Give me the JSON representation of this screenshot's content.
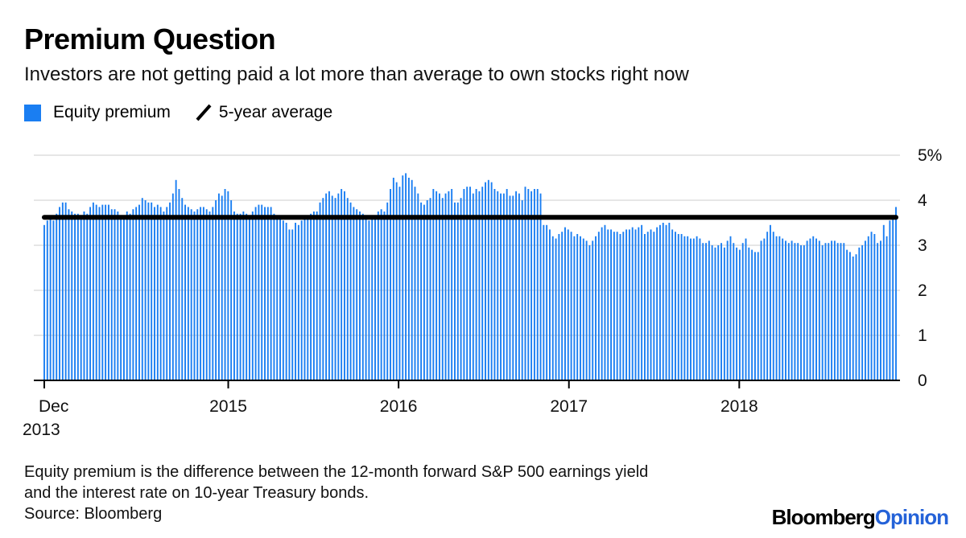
{
  "title": "Premium Question",
  "subtitle": "Investors are not getting paid a lot more than average to own stocks right now",
  "legend": {
    "equity_label": "Equity premium",
    "average_label": "5-year average"
  },
  "colors": {
    "bar": "#1a7ef2",
    "average_line": "#000000",
    "grid": "#e6e6e6",
    "axis": "#000000"
  },
  "footnote": {
    "line1": "Equity premium is the difference between the 12-month forward S&P 500 earnings yield",
    "line2": "and the interest rate on 10-year Treasury bonds."
  },
  "source": "Source: Bloomberg",
  "brand": {
    "part1": "Bloomberg",
    "part2": "Opinion"
  },
  "chart_data": {
    "type": "bar",
    "title": "Premium Question",
    "xlabel": "",
    "ylabel": "",
    "ylim": [
      0,
      5
    ],
    "y_ticks": [
      {
        "value": 0,
        "label": "0"
      },
      {
        "value": 1,
        "label": "1"
      },
      {
        "value": 2,
        "label": "2"
      },
      {
        "value": 3,
        "label": "3"
      },
      {
        "value": 4,
        "label": "4"
      },
      {
        "value": 5,
        "label": "5%"
      }
    ],
    "x_ticks": [
      {
        "year": 2013.92,
        "label": "Dec",
        "sublabel": "2013"
      },
      {
        "year": 2015.0,
        "label": "2015"
      },
      {
        "year": 2016.0,
        "label": "2016"
      },
      {
        "year": 2017.0,
        "label": "2017"
      },
      {
        "year": 2018.0,
        "label": "2018"
      }
    ],
    "x_range": [
      2013.92,
      2018.92
    ],
    "frequency": "weekly",
    "average": 3.62,
    "series": [
      {
        "name": "Equity premium",
        "values": [
          3.45,
          3.55,
          3.6,
          3.55,
          3.7,
          3.85,
          3.95,
          3.95,
          3.8,
          3.75,
          3.7,
          3.7,
          3.65,
          3.75,
          3.7,
          3.85,
          3.95,
          3.9,
          3.85,
          3.9,
          3.9,
          3.9,
          3.8,
          3.8,
          3.75,
          3.65,
          3.6,
          3.75,
          3.7,
          3.8,
          3.85,
          3.9,
          4.05,
          4.0,
          3.95,
          3.95,
          3.85,
          3.9,
          3.85,
          3.75,
          3.85,
          3.95,
          4.15,
          4.45,
          4.25,
          4.05,
          3.9,
          3.85,
          3.8,
          3.75,
          3.8,
          3.85,
          3.85,
          3.8,
          3.75,
          3.85,
          4.0,
          4.15,
          4.1,
          4.25,
          4.2,
          4.0,
          3.75,
          3.7,
          3.7,
          3.75,
          3.7,
          3.6,
          3.75,
          3.85,
          3.9,
          3.9,
          3.85,
          3.85,
          3.85,
          3.7,
          3.6,
          3.6,
          3.55,
          3.5,
          3.35,
          3.35,
          3.5,
          3.45,
          3.55,
          3.6,
          3.6,
          3.7,
          3.75,
          3.75,
          3.95,
          4.05,
          4.15,
          4.2,
          4.1,
          4.05,
          4.15,
          4.25,
          4.2,
          4.05,
          3.95,
          3.85,
          3.8,
          3.75,
          3.7,
          3.6,
          3.55,
          3.6,
          3.65,
          3.75,
          3.8,
          3.75,
          3.95,
          4.25,
          4.5,
          4.4,
          4.3,
          4.55,
          4.6,
          4.5,
          4.45,
          4.3,
          4.15,
          3.95,
          3.9,
          4.0,
          4.05,
          4.25,
          4.2,
          4.15,
          4.05,
          4.15,
          4.2,
          4.25,
          3.95,
          3.95,
          4.05,
          4.25,
          4.3,
          4.3,
          4.15,
          4.25,
          4.2,
          4.3,
          4.4,
          4.45,
          4.4,
          4.25,
          4.2,
          4.15,
          4.15,
          4.25,
          4.1,
          4.1,
          4.2,
          4.15,
          4.0,
          4.3,
          4.25,
          4.2,
          4.25,
          4.25,
          4.15,
          3.45,
          3.45,
          3.35,
          3.2,
          3.15,
          3.25,
          3.3,
          3.4,
          3.35,
          3.3,
          3.2,
          3.25,
          3.2,
          3.15,
          3.1,
          3.0,
          3.1,
          3.2,
          3.3,
          3.4,
          3.45,
          3.35,
          3.35,
          3.3,
          3.3,
          3.25,
          3.3,
          3.35,
          3.35,
          3.4,
          3.35,
          3.4,
          3.45,
          3.25,
          3.3,
          3.35,
          3.3,
          3.4,
          3.45,
          3.5,
          3.45,
          3.5,
          3.35,
          3.3,
          3.25,
          3.25,
          3.2,
          3.2,
          3.15,
          3.15,
          3.2,
          3.15,
          3.05,
          3.05,
          3.1,
          3.0,
          2.95,
          3.0,
          3.05,
          2.95,
          3.1,
          3.2,
          3.05,
          2.95,
          2.9,
          3.05,
          3.15,
          2.95,
          2.9,
          2.85,
          2.85,
          3.1,
          3.15,
          3.3,
          3.45,
          3.3,
          3.2,
          3.2,
          3.15,
          3.1,
          3.05,
          3.1,
          3.05,
          3.05,
          3.0,
          3.0,
          3.1,
          3.15,
          3.2,
          3.15,
          3.1,
          3.0,
          3.05,
          3.05,
          3.1,
          3.1,
          3.05,
          3.05,
          3.05,
          2.9,
          2.85,
          2.75,
          2.8,
          2.95,
          3.0,
          3.1,
          3.2,
          3.3,
          3.25,
          3.05,
          3.1,
          3.45,
          3.2,
          3.55,
          3.6,
          3.85
        ]
      }
    ]
  }
}
